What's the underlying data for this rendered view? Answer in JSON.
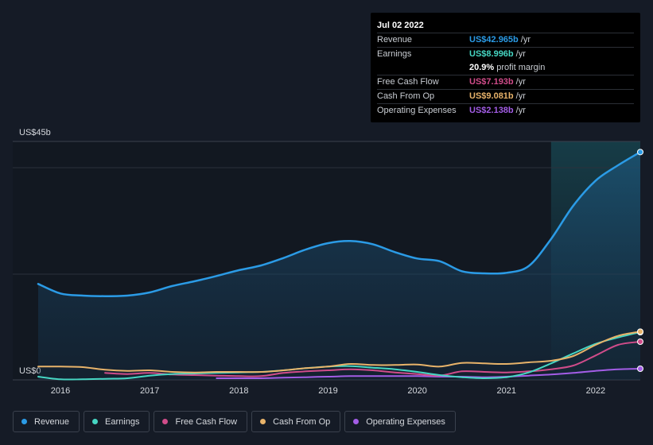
{
  "chart_data": {
    "type": "area",
    "ylabel_top": "US$45b",
    "ylabel_bottom": "US$0",
    "ylim": [
      0,
      45
    ],
    "xlim": [
      2015.75,
      2022.5
    ],
    "x_ticks": [
      "2016",
      "2017",
      "2018",
      "2019",
      "2020",
      "2021",
      "2022"
    ],
    "forecast_start": 2021.5,
    "series": [
      {
        "name": "Revenue",
        "color": "#2b9be6",
        "fill": true,
        "points": [
          [
            2015.75,
            18.1
          ],
          [
            2016.0,
            16.3
          ],
          [
            2016.25,
            15.9
          ],
          [
            2016.5,
            15.8
          ],
          [
            2016.75,
            15.9
          ],
          [
            2017.0,
            16.5
          ],
          [
            2017.25,
            17.7
          ],
          [
            2017.5,
            18.6
          ],
          [
            2017.75,
            19.6
          ],
          [
            2018.0,
            20.7
          ],
          [
            2018.25,
            21.6
          ],
          [
            2018.5,
            23.0
          ],
          [
            2018.75,
            24.6
          ],
          [
            2019.0,
            25.8
          ],
          [
            2019.25,
            26.2
          ],
          [
            2019.5,
            25.6
          ],
          [
            2019.75,
            24.1
          ],
          [
            2020.0,
            22.9
          ],
          [
            2020.25,
            22.4
          ],
          [
            2020.5,
            20.5
          ],
          [
            2020.75,
            20.1
          ],
          [
            2021.0,
            20.2
          ],
          [
            2021.25,
            21.5
          ],
          [
            2021.5,
            26.6
          ],
          [
            2021.75,
            32.9
          ],
          [
            2022.0,
            37.6
          ],
          [
            2022.25,
            40.5
          ],
          [
            2022.5,
            43.0
          ]
        ]
      },
      {
        "name": "Earnings",
        "color": "#46d6c3",
        "fill": false,
        "points": [
          [
            2015.75,
            0.6
          ],
          [
            2016.0,
            0.1
          ],
          [
            2016.25,
            0.1
          ],
          [
            2016.5,
            0.2
          ],
          [
            2016.75,
            0.3
          ],
          [
            2017.0,
            0.8
          ],
          [
            2017.25,
            1.1
          ],
          [
            2017.5,
            1.2
          ],
          [
            2017.75,
            1.3
          ],
          [
            2018.0,
            1.4
          ],
          [
            2018.25,
            1.5
          ],
          [
            2018.5,
            1.8
          ],
          [
            2018.75,
            2.2
          ],
          [
            2019.0,
            2.5
          ],
          [
            2019.25,
            2.6
          ],
          [
            2019.5,
            2.3
          ],
          [
            2019.75,
            2.0
          ],
          [
            2020.0,
            1.5
          ],
          [
            2020.25,
            0.9
          ],
          [
            2020.5,
            0.5
          ],
          [
            2020.75,
            0.3
          ],
          [
            2021.0,
            0.5
          ],
          [
            2021.25,
            1.4
          ],
          [
            2021.5,
            3.1
          ],
          [
            2021.75,
            5.0
          ],
          [
            2022.0,
            6.8
          ],
          [
            2022.25,
            8.0
          ],
          [
            2022.5,
            9.0
          ]
        ]
      },
      {
        "name": "Free Cash Flow",
        "color": "#d04c8a",
        "fill": false,
        "points": [
          [
            2016.5,
            1.3
          ],
          [
            2016.75,
            1.1
          ],
          [
            2017.0,
            1.3
          ],
          [
            2017.25,
            1.0
          ],
          [
            2017.5,
            0.9
          ],
          [
            2017.75,
            0.8
          ],
          [
            2018.0,
            0.7
          ],
          [
            2018.25,
            0.7
          ],
          [
            2018.5,
            1.3
          ],
          [
            2018.75,
            1.6
          ],
          [
            2019.0,
            1.8
          ],
          [
            2019.25,
            2.0
          ],
          [
            2019.5,
            1.8
          ],
          [
            2019.75,
            1.4
          ],
          [
            2020.0,
            1.1
          ],
          [
            2020.25,
            0.8
          ],
          [
            2020.5,
            1.6
          ],
          [
            2020.75,
            1.5
          ],
          [
            2021.0,
            1.4
          ],
          [
            2021.25,
            1.6
          ],
          [
            2021.5,
            2.0
          ],
          [
            2021.75,
            2.7
          ],
          [
            2022.0,
            4.6
          ],
          [
            2022.25,
            6.6
          ],
          [
            2022.5,
            7.2
          ]
        ]
      },
      {
        "name": "Cash From Op",
        "color": "#e8b36a",
        "fill": false,
        "points": [
          [
            2015.75,
            2.5
          ],
          [
            2016.0,
            2.5
          ],
          [
            2016.25,
            2.4
          ],
          [
            2016.5,
            1.9
          ],
          [
            2016.75,
            1.7
          ],
          [
            2017.0,
            1.8
          ],
          [
            2017.25,
            1.5
          ],
          [
            2017.5,
            1.4
          ],
          [
            2017.75,
            1.5
          ],
          [
            2018.0,
            1.5
          ],
          [
            2018.25,
            1.5
          ],
          [
            2018.5,
            1.8
          ],
          [
            2018.75,
            2.2
          ],
          [
            2019.0,
            2.5
          ],
          [
            2019.25,
            3.0
          ],
          [
            2019.5,
            2.8
          ],
          [
            2019.75,
            2.8
          ],
          [
            2020.0,
            2.9
          ],
          [
            2020.25,
            2.5
          ],
          [
            2020.5,
            3.2
          ],
          [
            2020.75,
            3.1
          ],
          [
            2021.0,
            3.0
          ],
          [
            2021.25,
            3.3
          ],
          [
            2021.5,
            3.6
          ],
          [
            2021.75,
            4.5
          ],
          [
            2022.0,
            6.6
          ],
          [
            2022.25,
            8.3
          ],
          [
            2022.5,
            9.1
          ]
        ]
      },
      {
        "name": "Operating Expenses",
        "color": "#a35de6",
        "fill": false,
        "points": [
          [
            2017.75,
            0.3
          ],
          [
            2018.0,
            0.3
          ],
          [
            2018.25,
            0.3
          ],
          [
            2018.5,
            0.4
          ],
          [
            2018.75,
            0.5
          ],
          [
            2019.0,
            0.6
          ],
          [
            2019.25,
            0.7
          ],
          [
            2019.5,
            0.7
          ],
          [
            2019.75,
            0.7
          ],
          [
            2020.0,
            0.7
          ],
          [
            2020.25,
            0.6
          ],
          [
            2020.5,
            0.6
          ],
          [
            2020.75,
            0.5
          ],
          [
            2021.0,
            0.6
          ],
          [
            2021.25,
            0.8
          ],
          [
            2021.5,
            1.0
          ],
          [
            2021.75,
            1.3
          ],
          [
            2022.0,
            1.7
          ],
          [
            2022.25,
            2.0
          ],
          [
            2022.5,
            2.1
          ]
        ]
      }
    ]
  },
  "tooltip": {
    "date": "Jul 02 2022",
    "rows": [
      {
        "label": "Revenue",
        "value": "US$42.965b",
        "unit": "/yr",
        "color": "#2b9be6"
      },
      {
        "label": "Earnings",
        "value": "US$8.996b",
        "unit": "/yr",
        "color": "#46d6c3"
      },
      {
        "label": "",
        "value": "20.9%",
        "unit": "profit margin",
        "color": "#ffffff"
      },
      {
        "label": "Free Cash Flow",
        "value": "US$7.193b",
        "unit": "/yr",
        "color": "#d04c8a"
      },
      {
        "label": "Cash From Op",
        "value": "US$9.081b",
        "unit": "/yr",
        "color": "#e8b36a"
      },
      {
        "label": "Operating Expenses",
        "value": "US$2.138b",
        "unit": "/yr",
        "color": "#a35de6"
      }
    ]
  },
  "legend": [
    {
      "label": "Revenue",
      "color": "#2b9be6"
    },
    {
      "label": "Earnings",
      "color": "#46d6c3"
    },
    {
      "label": "Free Cash Flow",
      "color": "#d04c8a"
    },
    {
      "label": "Cash From Op",
      "color": "#e8b36a"
    },
    {
      "label": "Operating Expenses",
      "color": "#a35de6"
    }
  ]
}
